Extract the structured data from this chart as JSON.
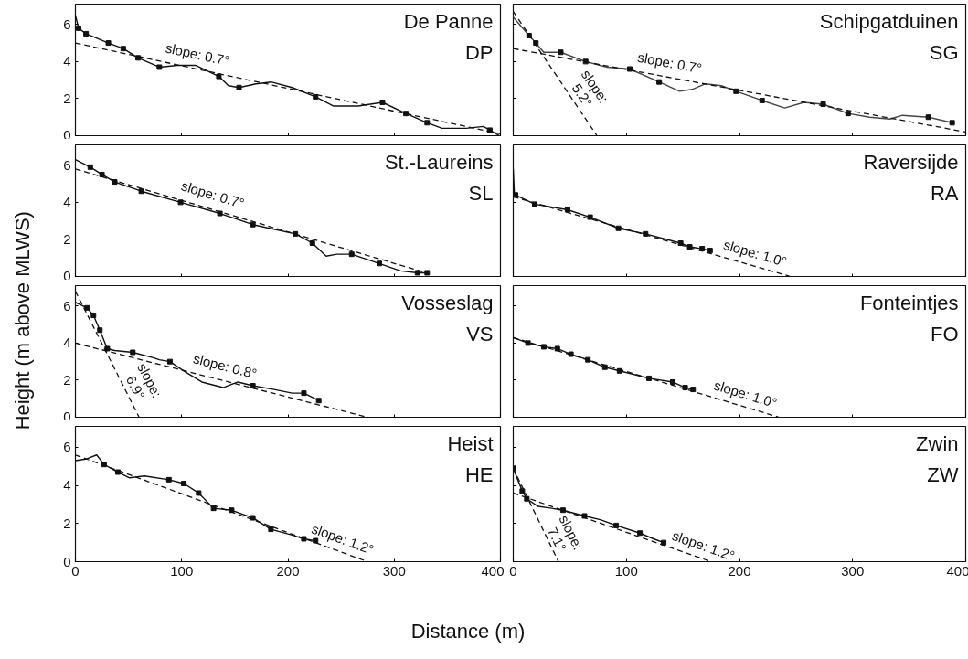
{
  "chart_data": [
    {
      "type": "line",
      "title": "De Panne",
      "subtitle": "DP",
      "ylabel": "Height (m above MLWS)",
      "xlim": [
        0,
        400
      ],
      "ylim": [
        0,
        7.1
      ],
      "xticks": [
        0,
        100,
        200,
        300,
        400
      ],
      "yticks": [
        0,
        2,
        4,
        6
      ],
      "tick_labels": "y",
      "grid": false,
      "series": [
        {
          "type": "line",
          "color": "#111111",
          "x": [
            0,
            3,
            10,
            31,
            45,
            59,
            79,
            96,
            113,
            135,
            144,
            154,
            170,
            184,
            204,
            226,
            243,
            266,
            289,
            311,
            331,
            345,
            368,
            384,
            390,
            399
          ],
          "values": [
            6.5,
            5.8,
            5.5,
            5.0,
            4.7,
            4.2,
            3.7,
            3.8,
            3.8,
            3.2,
            2.7,
            2.6,
            2.8,
            2.9,
            2.6,
            2.1,
            1.6,
            1.6,
            1.8,
            1.2,
            0.7,
            0.4,
            0.4,
            0.5,
            0.3,
            0
          ]
        },
        {
          "type": "scatter",
          "marker": "square",
          "color": "#111111",
          "x": [
            3,
            10,
            31,
            45,
            59,
            79,
            135,
            154,
            226,
            289,
            311,
            331,
            390
          ],
          "values": [
            5.8,
            5.5,
            5.0,
            4.7,
            4.2,
            3.7,
            3.2,
            2.6,
            2.1,
            1.8,
            1.2,
            0.7,
            0.3
          ]
        },
        {
          "type": "line",
          "line_style": "dashed",
          "color": "#111111",
          "x": [
            0,
            400
          ],
          "values": [
            5.0,
            0.1
          ]
        }
      ],
      "annotations": [
        "slope: 0.7°"
      ]
    },
    {
      "type": "line",
      "title": "Schipgatduinen",
      "subtitle": "SG",
      "xlim": [
        0,
        400
      ],
      "ylim": [
        0,
        7.1
      ],
      "xticks": [
        0,
        100,
        200,
        300,
        400
      ],
      "yticks": [
        0,
        2,
        4,
        6
      ],
      "tick_labels": false,
      "grid": false,
      "series": [
        {
          "type": "line",
          "color": "#444444",
          "x": [
            0,
            14,
            20,
            27,
            42,
            64,
            83,
            103,
            129,
            147,
            158,
            170,
            184,
            197,
            220,
            240,
            257,
            274,
            296,
            315,
            333,
            344,
            367,
            388
          ],
          "values": [
            6.4,
            5.4,
            5.0,
            4.5,
            4.5,
            4.0,
            3.7,
            3.6,
            2.9,
            2.4,
            2.5,
            2.8,
            2.7,
            2.4,
            1.9,
            1.5,
            1.8,
            1.7,
            1.2,
            1.0,
            0.9,
            1.1,
            1.0,
            0.7
          ]
        },
        {
          "type": "scatter",
          "marker": "square",
          "color": "#111111",
          "x": [
            14,
            20,
            42,
            64,
            103,
            129,
            197,
            220,
            274,
            296,
            367,
            388
          ],
          "values": [
            5.4,
            5.0,
            4.5,
            4.0,
            3.6,
            2.9,
            2.4,
            1.9,
            1.7,
            1.2,
            1.0,
            0.7
          ]
        },
        {
          "type": "line",
          "line_style": "dashed",
          "color": "#111111",
          "x": [
            0,
            400
          ],
          "values": [
            4.7,
            0.2
          ]
        },
        {
          "type": "line",
          "line_style": "dashed",
          "color": "#111111",
          "x": [
            0,
            74
          ],
          "values": [
            6.7,
            0
          ]
        }
      ],
      "annotations": [
        "slope: 0.7°",
        "slope:\n5.2°"
      ]
    },
    {
      "type": "line",
      "title": "St.-Laureins",
      "subtitle": "SL",
      "xlim": [
        0,
        400
      ],
      "ylim": [
        0,
        7.1
      ],
      "xticks": [
        0,
        100,
        200,
        300,
        400
      ],
      "yticks": [
        0,
        2,
        4,
        6
      ],
      "tick_labels": "y",
      "grid": false,
      "series": [
        {
          "type": "line",
          "color": "#111111",
          "x": [
            0,
            14,
            25,
            37,
            62,
            99,
            136,
            167,
            207,
            223,
            236,
            246,
            260,
            286,
            306,
            322,
            331
          ],
          "values": [
            6.3,
            5.9,
            5.5,
            5.1,
            4.6,
            4.0,
            3.4,
            2.8,
            2.3,
            1.8,
            1.1,
            1.2,
            1.2,
            0.7,
            0.3,
            0.2,
            0.2
          ]
        },
        {
          "type": "scatter",
          "marker": "square",
          "color": "#111111",
          "x": [
            14,
            25,
            37,
            62,
            99,
            136,
            167,
            207,
            223,
            260,
            286,
            322,
            331
          ],
          "values": [
            5.9,
            5.5,
            5.1,
            4.6,
            4.0,
            3.4,
            2.8,
            2.3,
            1.8,
            1.2,
            0.7,
            0.2,
            0.2
          ]
        },
        {
          "type": "line",
          "line_style": "dashed",
          "color": "#111111",
          "x": [
            0,
            330
          ],
          "values": [
            5.8,
            0.2
          ]
        }
      ],
      "annotations": [
        "slope: 0.7°"
      ]
    },
    {
      "type": "line",
      "title": "Raversijde",
      "subtitle": "RA",
      "xlim": [
        0,
        400
      ],
      "ylim": [
        0,
        7.1
      ],
      "xticks": [
        0,
        100,
        200,
        300,
        400
      ],
      "yticks": [
        0,
        2,
        4,
        6
      ],
      "tick_labels": false,
      "grid": false,
      "series": [
        {
          "type": "line",
          "color": "#111111",
          "x": [
            0,
            1,
            2,
            19,
            48,
            68,
            93,
            117,
            148,
            156,
            167,
            174
          ],
          "values": [
            5.8,
            4.4,
            4.4,
            3.9,
            3.6,
            3.2,
            2.6,
            2.3,
            1.8,
            1.6,
            1.5,
            1.4
          ]
        },
        {
          "type": "scatter",
          "marker": "square",
          "color": "#111111",
          "x": [
            2,
            19,
            48,
            68,
            93,
            117,
            148,
            156,
            167,
            174
          ],
          "values": [
            4.4,
            3.9,
            3.6,
            3.2,
            2.6,
            2.3,
            1.8,
            1.6,
            1.5,
            1.4
          ]
        },
        {
          "type": "line",
          "line_style": "dashed",
          "color": "#111111",
          "x": [
            0,
            245
          ],
          "values": [
            4.3,
            0
          ]
        }
      ],
      "annotations": [
        "slope: 1.0°"
      ]
    },
    {
      "type": "line",
      "title": "Vosseslag",
      "subtitle": "VS",
      "xlim": [
        0,
        400
      ],
      "ylim": [
        0,
        7.1
      ],
      "xticks": [
        0,
        100,
        200,
        300,
        400
      ],
      "yticks": [
        0,
        2,
        4,
        6
      ],
      "tick_labels": "y",
      "grid": false,
      "series": [
        {
          "type": "line",
          "color": "#111111",
          "x": [
            0,
            11,
            17,
            23,
            30,
            37,
            54,
            74,
            79,
            89,
            102,
            119,
            139,
            153,
            167,
            187,
            204,
            215,
            229
          ],
          "values": [
            6.2,
            5.9,
            5.5,
            4.7,
            3.7,
            3.6,
            3.5,
            3.2,
            3.1,
            3.0,
            2.5,
            1.9,
            1.6,
            1.9,
            1.7,
            1.5,
            1.3,
            1.3,
            0.9
          ]
        },
        {
          "type": "scatter",
          "marker": "square",
          "color": "#111111",
          "x": [
            11,
            17,
            23,
            30,
            54,
            89,
            167,
            215,
            229
          ],
          "values": [
            5.9,
            5.5,
            4.7,
            3.7,
            3.5,
            3.0,
            1.7,
            1.3,
            0.9
          ]
        },
        {
          "type": "line",
          "line_style": "dashed",
          "color": "#111111",
          "x": [
            0,
            275
          ],
          "values": [
            4.0,
            0
          ]
        },
        {
          "type": "line",
          "line_style": "dashed",
          "color": "#111111",
          "x": [
            0,
            60
          ],
          "values": [
            6.8,
            0
          ]
        }
      ],
      "annotations": [
        "slope: 0.8°",
        "slope:\n6.9°"
      ]
    },
    {
      "type": "line",
      "title": "Fonteintjes",
      "subtitle": "FO",
      "xlim": [
        0,
        400
      ],
      "ylim": [
        0,
        7.1
      ],
      "xticks": [
        0,
        100,
        200,
        300,
        400
      ],
      "yticks": [
        0,
        2,
        4,
        6
      ],
      "tick_labels": false,
      "grid": false,
      "series": [
        {
          "type": "line",
          "color": "#111111",
          "x": [
            0,
            13,
            27,
            39,
            51,
            66,
            81,
            94,
            120,
            141,
            152,
            159
          ],
          "values": [
            4.3,
            4.0,
            3.8,
            3.7,
            3.4,
            3.1,
            2.7,
            2.5,
            2.1,
            1.9,
            1.6,
            1.5
          ]
        },
        {
          "type": "scatter",
          "marker": "square",
          "color": "#111111",
          "x": [
            13,
            27,
            39,
            51,
            66,
            81,
            94,
            120,
            141,
            152,
            159
          ],
          "values": [
            4.0,
            3.8,
            3.7,
            3.4,
            3.1,
            2.7,
            2.5,
            2.1,
            1.9,
            1.6,
            1.5
          ]
        },
        {
          "type": "line",
          "line_style": "dashed",
          "color": "#111111",
          "x": [
            0,
            235
          ],
          "values": [
            4.3,
            0
          ]
        }
      ],
      "annotations": [
        "slope: 1.0°"
      ]
    },
    {
      "type": "line",
      "title": "Heist",
      "subtitle": "HE",
      "xlim": [
        0,
        400
      ],
      "ylim": [
        0,
        7.1
      ],
      "xticks": [
        0,
        100,
        200,
        300,
        400
      ],
      "yticks": [
        0,
        2,
        4,
        6
      ],
      "grid": false,
      "series": [
        {
          "type": "line",
          "color": "#111111",
          "x": [
            0,
            11,
            20,
            27,
            40,
            51,
            65,
            88,
            102,
            116,
            130,
            147,
            167,
            184,
            204,
            215,
            226
          ],
          "values": [
            5.3,
            5.4,
            5.6,
            5.1,
            4.7,
            4.4,
            4.5,
            4.3,
            4.1,
            3.6,
            2.8,
            2.7,
            2.3,
            1.7,
            1.4,
            1.2,
            1.1
          ]
        },
        {
          "type": "scatter",
          "marker": "square",
          "color": "#111111",
          "x": [
            27,
            40,
            88,
            102,
            116,
            130,
            147,
            167,
            184,
            215,
            226
          ],
          "values": [
            5.1,
            4.7,
            4.3,
            4.1,
            3.6,
            2.8,
            2.7,
            2.3,
            1.7,
            1.2,
            1.1
          ]
        },
        {
          "type": "line",
          "line_style": "dashed",
          "color": "#111111",
          "x": [
            0,
            275
          ],
          "values": [
            5.6,
            0
          ]
        }
      ],
      "annotations": [
        "slope: 1.2°"
      ]
    },
    {
      "type": "line",
      "title": "Zwin",
      "subtitle": "ZW",
      "xlabel": "Distance (m)",
      "xlim": [
        0,
        400
      ],
      "ylim": [
        0,
        7.1
      ],
      "xticks": [
        0,
        100,
        200,
        300,
        400
      ],
      "yticks": [
        0,
        2,
        4,
        6
      ],
      "tick_labels": "x",
      "grid": false,
      "series": [
        {
          "type": "line",
          "color": "#111111",
          "x": [
            0,
            8,
            12,
            22,
            34,
            44,
            63,
            77,
            91,
            112,
            124,
            133
          ],
          "values": [
            4.9,
            3.7,
            3.3,
            2.9,
            2.8,
            2.7,
            2.4,
            2.2,
            1.9,
            1.5,
            1.2,
            1.0
          ]
        },
        {
          "type": "scatter",
          "marker": "square",
          "color": "#111111",
          "x": [
            0,
            8,
            12,
            44,
            63,
            91,
            112,
            133
          ],
          "values": [
            4.9,
            3.7,
            3.3,
            2.7,
            2.4,
            1.9,
            1.5,
            1.0
          ]
        },
        {
          "type": "line",
          "line_style": "dashed",
          "color": "#111111",
          "x": [
            0,
            175
          ],
          "values": [
            3.6,
            0
          ]
        },
        {
          "type": "line",
          "line_style": "dashed",
          "color": "#111111",
          "x": [
            0,
            40
          ],
          "values": [
            4.9,
            0
          ]
        }
      ],
      "annotations": [
        "slope: 1.2°",
        "slope:\n7.1°"
      ]
    }
  ]
}
